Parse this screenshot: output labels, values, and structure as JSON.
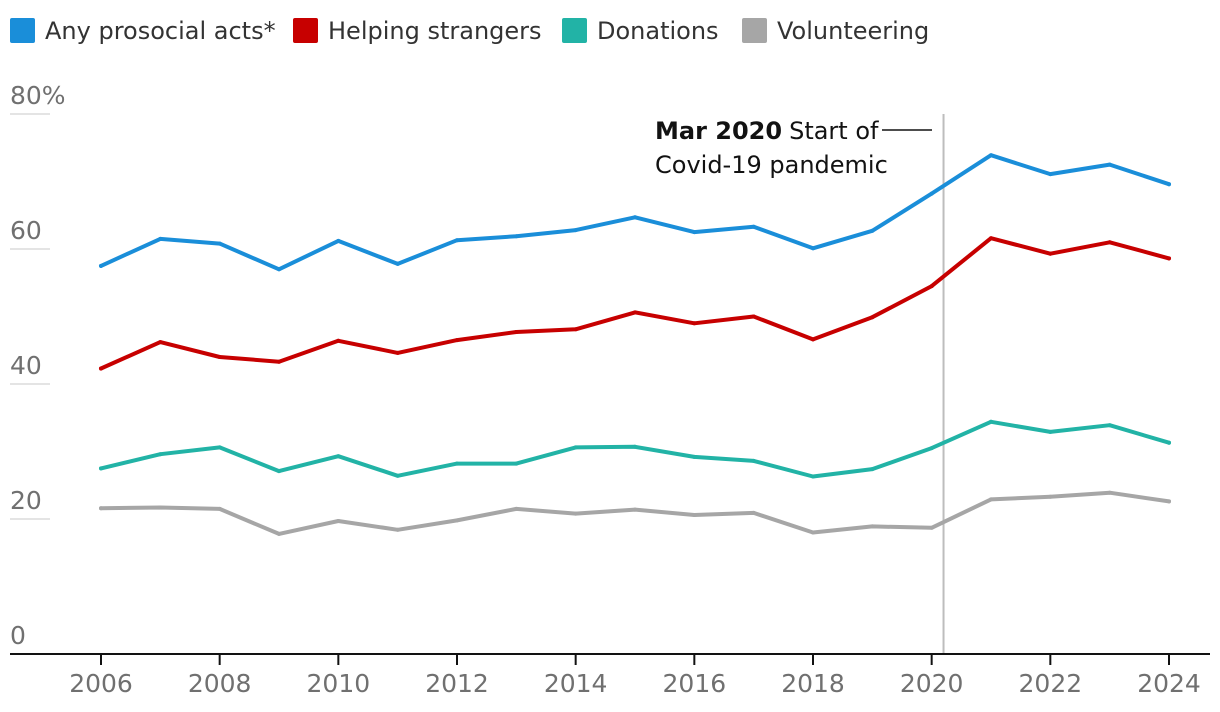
{
  "chart_data": {
    "type": "line",
    "x": [
      2006,
      2007,
      2008,
      2009,
      2010,
      2011,
      2012,
      2013,
      2014,
      2015,
      2016,
      2017,
      2018,
      2019,
      2020,
      2021,
      2022,
      2023,
      2024
    ],
    "x_ticks": [
      "2006",
      "2008",
      "2010",
      "2012",
      "2014",
      "2016",
      "2018",
      "2020",
      "2022",
      "2024"
    ],
    "y_ticks": [
      "80%",
      "60",
      "40",
      "20",
      "0"
    ],
    "ylim": [
      0,
      80
    ],
    "xlim": [
      2004.5,
      2025.7
    ],
    "grid": "horizontal short ticks at left",
    "legend_position": "top-left",
    "series": [
      {
        "name": "Any prosocial acts*",
        "color": "#1a8ed9",
        "values": [
          57.5,
          61.5,
          60.8,
          57.0,
          61.2,
          57.8,
          61.3,
          61.9,
          62.8,
          64.7,
          62.5,
          63.3,
          60.1,
          62.7,
          68.2,
          73.9,
          71.1,
          72.5,
          69.6
        ]
      },
      {
        "name": "Helping strangers",
        "color": "#c70000",
        "values": [
          42.3,
          46.2,
          44.0,
          43.3,
          46.4,
          44.6,
          46.5,
          47.7,
          48.1,
          50.6,
          49.0,
          50.0,
          46.6,
          49.9,
          54.5,
          61.6,
          59.3,
          61.0,
          58.6
        ]
      },
      {
        "name": "Donations",
        "color": "#22b3a6",
        "values": [
          27.5,
          29.6,
          30.6,
          27.1,
          29.3,
          26.4,
          28.2,
          28.2,
          30.6,
          30.7,
          29.2,
          28.6,
          26.3,
          27.4,
          30.5,
          34.4,
          32.9,
          33.9,
          31.3
        ]
      },
      {
        "name": "Volunteering",
        "color": "#a6a6a6",
        "values": [
          21.6,
          21.7,
          21.5,
          17.8,
          19.7,
          18.4,
          19.8,
          21.5,
          20.8,
          21.4,
          20.6,
          20.9,
          18.0,
          18.9,
          18.7,
          22.9,
          23.3,
          23.9,
          22.6
        ]
      }
    ],
    "annotations": [
      {
        "x": 2020.2,
        "bold": "Mar 2020",
        "text_line1": "Start of",
        "text_line2": "Covid-19 pandemic"
      }
    ]
  },
  "colors": {
    "text": "#333333",
    "tick": "#707070",
    "axis": "#121212",
    "gridline": "#dcdcdc",
    "annotation_line": "#bdbdbd"
  }
}
